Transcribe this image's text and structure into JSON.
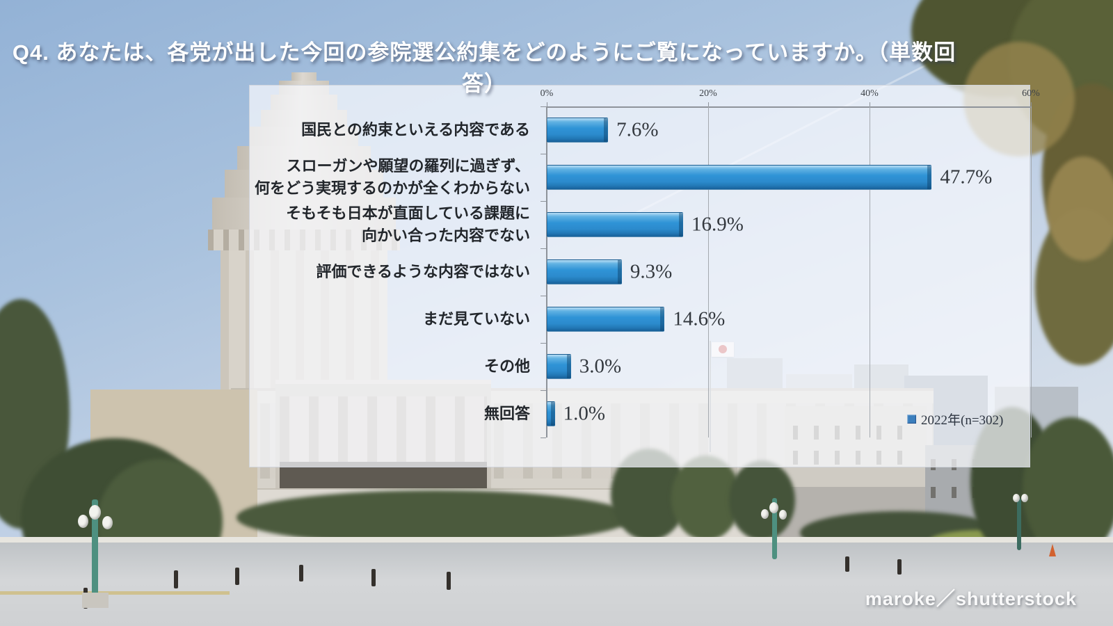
{
  "title": "Q4. あなたは、各党が出した今回の参院選公約集をどのようにご覧になっていますか。（単数回答）",
  "watermark": "maroke／shutterstock",
  "chart_data": {
    "type": "bar",
    "orientation": "horizontal",
    "title": "Q4. あなたは、各党が出した今回の参院選公約集をどのようにご覧になっていますか。（単数回答）",
    "categories": [
      "国民との約束といえる内容である",
      "スローガンや願望の羅列に過ぎず、\n何をどう実現するのかが全くわからない",
      "そもそも日本が直面している課題に\n向かい合った内容でない",
      "評価できるような内容ではない",
      "まだ見ていない",
      "その他",
      "無回答"
    ],
    "series": [
      {
        "name": "2022年(n=302)",
        "values": [
          7.6,
          47.7,
          16.9,
          9.3,
          14.6,
          3.0,
          1.0
        ]
      }
    ],
    "value_labels": [
      "7.6%",
      "47.7%",
      "16.9%",
      "9.3%",
      "14.6%",
      "3.0%",
      "1.0%"
    ],
    "x_ticks": [
      {
        "value": 0,
        "label": "0%"
      },
      {
        "value": 20,
        "label": "20%"
      },
      {
        "value": 40,
        "label": "40%"
      },
      {
        "value": 60,
        "label": "60%"
      }
    ],
    "xlim": [
      0,
      60
    ],
    "grid": true,
    "legend_position": "bottom-right",
    "bar_color": "#2f93d6"
  }
}
